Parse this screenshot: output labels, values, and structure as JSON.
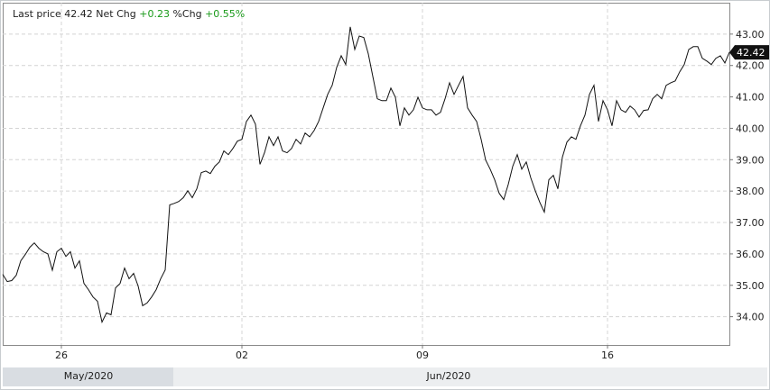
{
  "header": {
    "last_price_label": "Last price",
    "last_price": 42.42,
    "net_chg_label": "Net Chg",
    "net_chg": "+0.23",
    "pct_chg_label": "%Chg",
    "pct_chg": "+0.55%"
  },
  "chart_data": {
    "type": "line",
    "color": "#111111",
    "grid": true,
    "categories": [
      null,
      null,
      null,
      null,
      null,
      null,
      null,
      null,
      null,
      null,
      null,
      null,
      null,
      "26",
      null,
      null,
      null,
      null,
      null,
      null,
      null,
      null,
      null,
      null,
      null,
      null,
      null,
      null,
      null,
      null,
      null,
      null,
      null,
      null,
      null,
      null,
      null,
      null,
      null,
      null,
      null,
      null,
      null,
      null,
      null,
      null,
      null,
      null,
      null,
      null,
      null,
      null,
      null,
      "02",
      null,
      null,
      null,
      null,
      null,
      null,
      null,
      null,
      null,
      null,
      null,
      null,
      null,
      null,
      null,
      null,
      null,
      null,
      null,
      null,
      null,
      null,
      null,
      null,
      null,
      null,
      null,
      null,
      null,
      null,
      null,
      null,
      null,
      null,
      null,
      null,
      null,
      null,
      null,
      "09",
      null,
      null,
      null,
      null,
      null,
      null,
      null,
      null,
      null,
      null,
      null,
      null,
      null,
      null,
      null,
      null,
      null,
      null,
      null,
      null,
      null,
      null,
      null,
      null,
      null,
      null,
      null,
      null,
      null,
      null,
      null,
      null,
      null,
      null,
      null,
      null,
      null,
      null,
      null,
      null,
      "16",
      null,
      null,
      null,
      null,
      null,
      null,
      null,
      null,
      null,
      null,
      null,
      null,
      null,
      null,
      null,
      null,
      null,
      null,
      null,
      null,
      null,
      null,
      null,
      null,
      null,
      null,
      null
    ],
    "values": [
      35.35,
      35.12,
      35.15,
      35.32,
      35.78,
      35.98,
      36.21,
      36.35,
      36.18,
      36.07,
      36.0,
      35.48,
      36.07,
      36.18,
      35.92,
      36.07,
      35.55,
      35.78,
      35.06,
      34.86,
      34.63,
      34.49,
      33.83,
      34.12,
      34.06,
      34.92,
      35.06,
      35.55,
      35.21,
      35.38,
      34.98,
      34.35,
      34.44,
      34.63,
      34.86,
      35.21,
      35.49,
      37.56,
      37.61,
      37.67,
      37.79,
      38.01,
      37.79,
      38.07,
      38.59,
      38.64,
      38.56,
      38.79,
      38.93,
      39.28,
      39.16,
      39.36,
      39.59,
      39.65,
      40.22,
      40.42,
      40.13,
      38.85,
      39.22,
      39.73,
      39.45,
      39.73,
      39.28,
      39.22,
      39.36,
      39.65,
      39.5,
      39.85,
      39.73,
      39.93,
      40.22,
      40.65,
      41.08,
      41.37,
      41.94,
      42.31,
      42.03,
      43.23,
      42.51,
      42.94,
      42.89,
      42.37,
      41.65,
      40.94,
      40.88,
      40.88,
      41.28,
      40.99,
      40.08,
      40.65,
      40.42,
      40.59,
      40.99,
      40.65,
      40.59,
      40.59,
      40.42,
      40.51,
      40.94,
      41.45,
      41.08,
      41.37,
      41.65,
      40.65,
      40.42,
      40.22,
      39.65,
      38.99,
      38.7,
      38.36,
      37.93,
      37.73,
      38.21,
      38.79,
      39.16,
      38.7,
      38.93,
      38.42,
      38.01,
      37.64,
      37.33,
      38.36,
      38.5,
      38.07,
      39.08,
      39.56,
      39.73,
      39.65,
      40.08,
      40.42,
      41.08,
      41.37,
      40.22,
      40.88,
      40.59,
      40.08,
      40.88,
      40.59,
      40.51,
      40.71,
      40.59,
      40.36,
      40.57,
      40.59,
      40.94,
      41.08,
      40.94,
      41.37,
      41.45,
      41.51,
      41.8,
      42.03,
      42.51,
      42.6,
      42.6,
      42.23,
      42.14,
      42.03,
      42.23,
      42.31,
      42.08,
      42.42
    ],
    "ylim": [
      33.1,
      44.0
    ],
    "yticks": [
      {
        "value": 34,
        "label": "34.00"
      },
      {
        "value": 35,
        "label": "35.00"
      },
      {
        "value": 36,
        "label": "36.00"
      },
      {
        "value": 37,
        "label": "37.00"
      },
      {
        "value": 38,
        "label": "38.00"
      },
      {
        "value": 39,
        "label": "39.00"
      },
      {
        "value": 40,
        "label": "40.00"
      },
      {
        "value": 41,
        "label": "41.00"
      },
      {
        "value": 42,
        "label": "42.00"
      },
      {
        "value": 43,
        "label": "43.00"
      }
    ],
    "months": [
      "May/2020",
      "Jun/2020"
    ]
  }
}
